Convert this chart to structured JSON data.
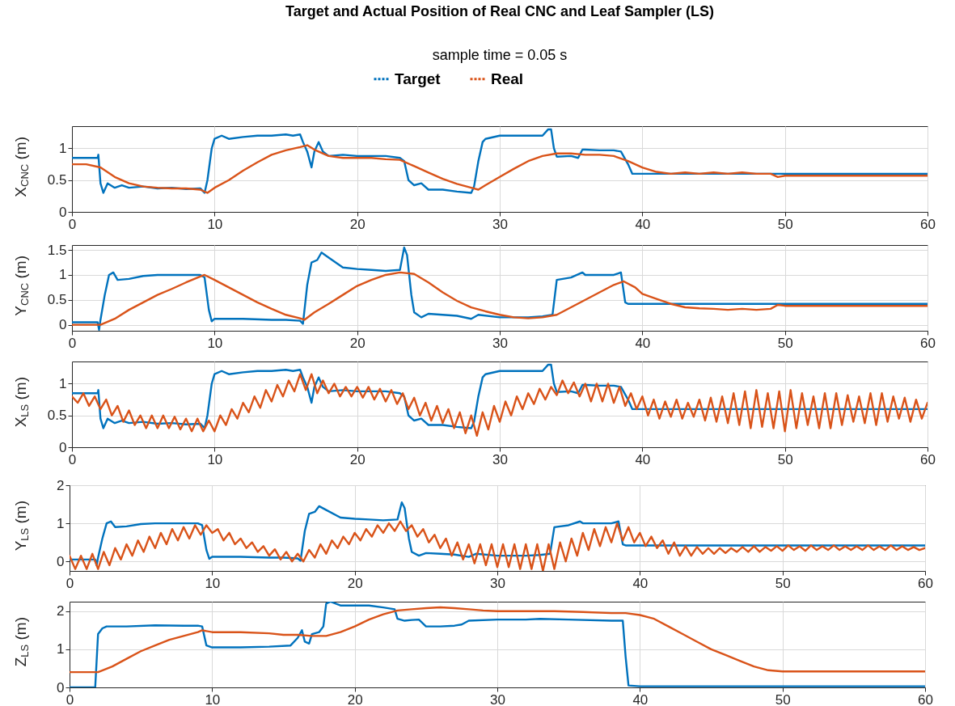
{
  "chart_data": [
    {
      "type": "line",
      "title": "Target and Actual Position of Real CNC and Leaf Sampler (LS)",
      "subtitle": "sample time = 0.05 s",
      "ylabel": "X$_{CNC}$ (m)",
      "legend": "top",
      "grid": true,
      "xlim": [
        0,
        60
      ],
      "xticks": [
        0,
        10,
        20,
        30,
        40,
        50,
        60
      ],
      "ylim": [
        0,
        1.35
      ],
      "yticks": [
        0,
        0.5,
        1
      ],
      "series": [
        {
          "name": "Target",
          "color": "#0072bd",
          "x": [
            0,
            1.8,
            1.85,
            2,
            2.2,
            2.5,
            3,
            3.5,
            4,
            5,
            6,
            7,
            8,
            9,
            9.3,
            9.5,
            9.8,
            10,
            10.5,
            11,
            12,
            13,
            14,
            15,
            15.5,
            16,
            16.2,
            16.5,
            16.8,
            17,
            17.3,
            17.6,
            18,
            19,
            20,
            21,
            22,
            23,
            23.3,
            23.6,
            24,
            24.5,
            25,
            26,
            27,
            28,
            28.2,
            28.5,
            28.8,
            29,
            30,
            31,
            32,
            33,
            33.4,
            33.6,
            33.8,
            34,
            35,
            35.5,
            35.8,
            36,
            37,
            38,
            38.5,
            39,
            39.3,
            45,
            50,
            60
          ],
          "values": [
            0.85,
            0.85,
            0.9,
            0.45,
            0.3,
            0.45,
            0.38,
            0.42,
            0.38,
            0.4,
            0.37,
            0.38,
            0.36,
            0.37,
            0.3,
            0.5,
            1.0,
            1.15,
            1.2,
            1.15,
            1.18,
            1.2,
            1.2,
            1.22,
            1.2,
            1.22,
            1.1,
            0.95,
            0.7,
            0.95,
            1.1,
            0.95,
            0.88,
            0.9,
            0.88,
            0.88,
            0.88,
            0.85,
            0.8,
            0.5,
            0.42,
            0.45,
            0.35,
            0.35,
            0.32,
            0.3,
            0.4,
            0.8,
            1.1,
            1.15,
            1.2,
            1.2,
            1.2,
            1.2,
            1.3,
            1.3,
            1.0,
            0.87,
            0.88,
            0.85,
            0.98,
            0.98,
            0.97,
            0.97,
            0.95,
            0.75,
            0.6,
            0.6,
            0.6,
            0.6
          ]
        },
        {
          "name": "Real",
          "color": "#d95319",
          "x": [
            0,
            1,
            2,
            3,
            4,
            5,
            6,
            7,
            8,
            9,
            9.5,
            10,
            11,
            12,
            13,
            14,
            15,
            16,
            16.5,
            17,
            18,
            19,
            20,
            21,
            22,
            23,
            24,
            25,
            26,
            27,
            28,
            28.5,
            29,
            30,
            31,
            32,
            33,
            34,
            35,
            36,
            37,
            38,
            39,
            40,
            41,
            42,
            43,
            44,
            45,
            46,
            47,
            48,
            49,
            49.5,
            50,
            60
          ],
          "values": [
            0.75,
            0.75,
            0.7,
            0.55,
            0.45,
            0.4,
            0.38,
            0.37,
            0.37,
            0.35,
            0.3,
            0.38,
            0.5,
            0.65,
            0.78,
            0.9,
            0.97,
            1.02,
            1.05,
            0.98,
            0.88,
            0.85,
            0.85,
            0.85,
            0.83,
            0.82,
            0.72,
            0.62,
            0.52,
            0.44,
            0.38,
            0.35,
            0.42,
            0.55,
            0.68,
            0.8,
            0.88,
            0.92,
            0.92,
            0.9,
            0.9,
            0.88,
            0.8,
            0.7,
            0.63,
            0.6,
            0.62,
            0.6,
            0.62,
            0.6,
            0.62,
            0.6,
            0.6,
            0.55,
            0.57,
            0.57
          ]
        }
      ]
    },
    {
      "type": "line",
      "ylabel": "Y$_{CNC}$ (m)",
      "grid": true,
      "xlim": [
        0,
        60
      ],
      "xticks": [
        0,
        10,
        20,
        30,
        40,
        50,
        60
      ],
      "ylim": [
        -0.12,
        1.6
      ],
      "yticks": [
        0,
        0.5,
        1,
        1.5
      ],
      "series": [
        {
          "color": "#0072bd",
          "x": [
            0,
            1.5,
            1.8,
            1.9,
            2,
            2.3,
            2.6,
            2.9,
            3.2,
            4,
            5,
            6,
            7,
            8,
            9,
            9.3,
            9.6,
            9.8,
            10,
            11,
            12,
            14,
            15,
            16,
            16.2,
            16.5,
            16.8,
            17.2,
            17.5,
            18,
            19,
            20,
            21,
            22,
            23,
            23.3,
            23.5,
            23.8,
            24,
            24.5,
            25,
            26,
            27,
            28,
            28.5,
            30,
            32,
            33,
            33.7,
            34,
            35,
            35.8,
            36,
            37,
            38,
            38.5,
            38.8,
            39,
            60
          ],
          "values": [
            0.05,
            0.05,
            0.05,
            -0.1,
            0.1,
            0.6,
            1.0,
            1.05,
            0.9,
            0.92,
            0.98,
            1.0,
            1.0,
            1.0,
            1.0,
            0.95,
            0.3,
            0.07,
            0.12,
            0.12,
            0.12,
            0.1,
            0.1,
            0.08,
            0.02,
            0.8,
            1.25,
            1.3,
            1.45,
            1.35,
            1.15,
            1.12,
            1.1,
            1.08,
            1.1,
            1.55,
            1.4,
            0.6,
            0.25,
            0.15,
            0.22,
            0.2,
            0.18,
            0.12,
            0.2,
            0.15,
            0.15,
            0.17,
            0.2,
            0.9,
            0.95,
            1.05,
            1.0,
            1.0,
            1.0,
            1.05,
            0.45,
            0.42,
            0.42
          ]
        },
        {
          "color": "#d95319",
          "x": [
            0,
            2,
            3,
            4,
            5,
            6,
            7,
            8,
            9,
            9.3,
            10,
            11,
            12,
            13,
            14,
            15,
            16,
            16.3,
            17,
            18,
            19,
            20,
            21,
            22,
            23,
            24,
            25,
            26,
            27,
            28,
            29,
            30,
            31,
            32,
            33,
            34,
            35,
            36,
            37,
            38,
            38.7,
            39.5,
            40,
            41,
            42,
            43,
            44,
            45,
            46,
            47,
            48,
            49,
            49.5,
            50,
            60
          ],
          "values": [
            0,
            0,
            0.12,
            0.3,
            0.45,
            0.6,
            0.72,
            0.85,
            0.97,
            1.0,
            0.9,
            0.75,
            0.6,
            0.45,
            0.32,
            0.2,
            0.13,
            0.1,
            0.25,
            0.42,
            0.6,
            0.78,
            0.9,
            1.0,
            1.05,
            1.02,
            0.85,
            0.65,
            0.48,
            0.35,
            0.27,
            0.2,
            0.15,
            0.13,
            0.15,
            0.2,
            0.35,
            0.5,
            0.65,
            0.8,
            0.87,
            0.75,
            0.62,
            0.52,
            0.42,
            0.35,
            0.33,
            0.32,
            0.3,
            0.32,
            0.3,
            0.32,
            0.4,
            0.38,
            0.38
          ]
        }
      ]
    },
    {
      "type": "line",
      "ylabel": "X$_{LS}$ (m)",
      "grid": true,
      "xlim": [
        0,
        60
      ],
      "xticks": [
        0,
        10,
        20,
        30,
        40,
        50,
        60
      ],
      "ylim": [
        0,
        1.35
      ],
      "yticks": [
        0,
        0.5,
        1
      ],
      "series": [
        {
          "color": "#0072bd",
          "x": [
            0,
            1.8,
            1.85,
            2,
            2.2,
            2.5,
            3,
            3.5,
            4,
            5,
            6,
            7,
            8,
            9,
            9.3,
            9.5,
            9.8,
            10,
            10.5,
            11,
            12,
            13,
            14,
            15,
            15.5,
            16,
            16.2,
            16.5,
            16.8,
            17,
            17.3,
            17.6,
            18,
            19,
            20,
            21,
            22,
            23,
            23.3,
            23.6,
            24,
            24.5,
            25,
            26,
            27,
            28,
            28.2,
            28.5,
            28.8,
            29,
            30,
            31,
            32,
            33,
            33.4,
            33.6,
            33.8,
            34,
            35,
            35.5,
            35.8,
            36,
            37,
            38,
            38.5,
            39,
            39.3,
            45,
            50,
            60
          ],
          "values": [
            0.85,
            0.85,
            0.9,
            0.45,
            0.3,
            0.45,
            0.38,
            0.42,
            0.38,
            0.4,
            0.37,
            0.38,
            0.36,
            0.37,
            0.3,
            0.5,
            1.0,
            1.15,
            1.2,
            1.15,
            1.18,
            1.2,
            1.2,
            1.22,
            1.2,
            1.22,
            1.1,
            0.95,
            0.7,
            0.95,
            1.1,
            0.95,
            0.88,
            0.9,
            0.88,
            0.88,
            0.88,
            0.85,
            0.8,
            0.5,
            0.42,
            0.45,
            0.35,
            0.35,
            0.32,
            0.3,
            0.4,
            0.8,
            1.1,
            1.15,
            1.2,
            1.2,
            1.2,
            1.2,
            1.3,
            1.3,
            1.0,
            0.87,
            0.88,
            0.85,
            0.98,
            0.98,
            0.97,
            0.97,
            0.95,
            0.75,
            0.6,
            0.6,
            0.6,
            0.6
          ]
        },
        {
          "color": "#d95319",
          "x": [
            0,
            0.4,
            0.8,
            1.2,
            1.6,
            2,
            2.4,
            2.8,
            3.2,
            3.6,
            4,
            4.4,
            4.8,
            5.2,
            5.6,
            6,
            6.4,
            6.8,
            7.2,
            7.6,
            8,
            8.4,
            8.8,
            9.2,
            9.6,
            10,
            10.4,
            10.8,
            11.2,
            11.6,
            12,
            12.4,
            12.8,
            13.2,
            13.6,
            14,
            14.4,
            14.8,
            15.2,
            15.6,
            16,
            16.4,
            16.8,
            17.2,
            17.6,
            18,
            18.4,
            18.8,
            19.2,
            19.6,
            20,
            20.4,
            20.8,
            21.2,
            21.6,
            22,
            22.4,
            22.8,
            23.2,
            23.6,
            24,
            24.4,
            24.8,
            25.2,
            25.6,
            26,
            26.4,
            26.8,
            27.2,
            27.6,
            28,
            28.4,
            28.8,
            29.2,
            29.6,
            30,
            30.4,
            30.8,
            31.2,
            31.6,
            32,
            32.4,
            32.8,
            33.2,
            33.6,
            34,
            34.4,
            34.8,
            35.2,
            35.6,
            36,
            36.4,
            36.8,
            37.2,
            37.6,
            38,
            38.4,
            38.8,
            39.2,
            39.6,
            40,
            40.4,
            40.8,
            41.2,
            41.6,
            42,
            42.4,
            42.8,
            43.2,
            43.6,
            44,
            44.4,
            44.8,
            45.2,
            45.6,
            46,
            46.4,
            46.8,
            47.2,
            47.6,
            48,
            48.4,
            48.8,
            49.2,
            49.6,
            50,
            50.4,
            50.8,
            51.2,
            51.6,
            52,
            52.4,
            52.8,
            53.2,
            53.6,
            54,
            54.4,
            54.8,
            55.2,
            55.6,
            56,
            56.4,
            56.8,
            57.2,
            57.6,
            58,
            58.4,
            58.8,
            59.2,
            59.6,
            60
          ],
          "values": [
            0.8,
            0.7,
            0.85,
            0.65,
            0.8,
            0.6,
            0.75,
            0.5,
            0.65,
            0.4,
            0.58,
            0.35,
            0.5,
            0.3,
            0.5,
            0.3,
            0.5,
            0.3,
            0.48,
            0.28,
            0.45,
            0.25,
            0.45,
            0.25,
            0.42,
            0.25,
            0.5,
            0.35,
            0.6,
            0.45,
            0.7,
            0.55,
            0.8,
            0.62,
            0.9,
            0.72,
            0.98,
            0.8,
            1.05,
            0.88,
            1.15,
            0.9,
            1.15,
            0.85,
            1.05,
            0.85,
            1.0,
            0.8,
            0.95,
            0.8,
            0.95,
            0.78,
            0.95,
            0.75,
            0.92,
            0.72,
            0.9,
            0.68,
            0.85,
            0.6,
            0.78,
            0.5,
            0.7,
            0.42,
            0.65,
            0.38,
            0.6,
            0.3,
            0.55,
            0.22,
            0.5,
            0.18,
            0.55,
            0.28,
            0.65,
            0.4,
            0.72,
            0.5,
            0.8,
            0.6,
            0.85,
            0.68,
            0.92,
            0.75,
            0.95,
            0.82,
            1.05,
            0.85,
            1.02,
            0.8,
            1.0,
            0.72,
            1.0,
            0.72,
            1.0,
            0.7,
            0.95,
            0.65,
            0.85,
            0.6,
            0.8,
            0.5,
            0.75,
            0.45,
            0.72,
            0.48,
            0.75,
            0.45,
            0.7,
            0.48,
            0.75,
            0.42,
            0.78,
            0.4,
            0.8,
            0.38,
            0.85,
            0.35,
            0.88,
            0.3,
            0.9,
            0.32,
            0.85,
            0.3,
            0.88,
            0.25,
            0.9,
            0.3,
            0.85,
            0.35,
            0.8,
            0.3,
            0.85,
            0.3,
            0.85,
            0.35,
            0.82,
            0.4,
            0.8,
            0.38,
            0.85,
            0.35,
            0.85,
            0.4,
            0.8,
            0.45,
            0.78,
            0.4,
            0.75,
            0.45,
            0.7
          ]
        }
      ]
    },
    {
      "type": "line",
      "ylabel": "Y$_{LS}$ (m)",
      "grid": true,
      "xlim": [
        0,
        60
      ],
      "xticks": [
        0,
        10,
        20,
        30,
        40,
        50,
        60
      ],
      "ylim": [
        -0.25,
        2
      ],
      "yticks": [
        0,
        1,
        2
      ],
      "series": [
        {
          "color": "#0072bd",
          "x": [
            0,
            1.5,
            1.8,
            1.9,
            2,
            2.3,
            2.6,
            2.9,
            3.2,
            4,
            5,
            6,
            7,
            8,
            9,
            9.3,
            9.6,
            9.8,
            10,
            11,
            12,
            14,
            15,
            16,
            16.2,
            16.5,
            16.8,
            17.2,
            17.5,
            18,
            19,
            20,
            21,
            22,
            23,
            23.3,
            23.5,
            23.8,
            24,
            24.5,
            25,
            26,
            27,
            28,
            28.5,
            30,
            32,
            33,
            33.7,
            34,
            35,
            35.8,
            36,
            37,
            38,
            38.5,
            38.8,
            39,
            60
          ],
          "values": [
            0.05,
            0.05,
            0.05,
            -0.1,
            0.1,
            0.6,
            1.0,
            1.05,
            0.9,
            0.92,
            0.98,
            1.0,
            1.0,
            1.0,
            1.0,
            0.95,
            0.3,
            0.07,
            0.12,
            0.12,
            0.12,
            0.1,
            0.1,
            0.08,
            0.02,
            0.8,
            1.25,
            1.3,
            1.45,
            1.35,
            1.15,
            1.12,
            1.1,
            1.08,
            1.1,
            1.55,
            1.4,
            0.6,
            0.25,
            0.15,
            0.22,
            0.2,
            0.18,
            0.12,
            0.2,
            0.15,
            0.15,
            0.17,
            0.2,
            0.9,
            0.95,
            1.05,
            1.0,
            1.0,
            1.0,
            1.05,
            0.45,
            0.42,
            0.42
          ]
        },
        {
          "color": "#d95319",
          "x": [
            0,
            0.4,
            0.8,
            1.2,
            1.6,
            2,
            2.4,
            2.8,
            3.2,
            3.6,
            4,
            4.4,
            4.8,
            5.2,
            5.6,
            6,
            6.4,
            6.8,
            7.2,
            7.6,
            8,
            8.4,
            8.8,
            9.2,
            9.6,
            10,
            10.4,
            10.8,
            11.2,
            11.6,
            12,
            12.4,
            12.8,
            13.2,
            13.6,
            14,
            14.4,
            14.8,
            15.2,
            15.6,
            16,
            16.4,
            16.8,
            17.2,
            17.6,
            18,
            18.4,
            18.8,
            19.2,
            19.6,
            20,
            20.4,
            20.8,
            21.2,
            21.6,
            22,
            22.4,
            22.8,
            23.2,
            23.6,
            24,
            24.4,
            24.8,
            25.2,
            25.6,
            26,
            26.4,
            26.8,
            27.2,
            27.6,
            28,
            28.4,
            28.8,
            29.2,
            29.6,
            30,
            30.4,
            30.8,
            31.2,
            31.6,
            32,
            32.4,
            32.8,
            33.2,
            33.6,
            34,
            34.4,
            34.8,
            35.2,
            35.6,
            36,
            36.4,
            36.8,
            37.2,
            37.6,
            38,
            38.4,
            38.8,
            39.2,
            39.6,
            40,
            40.4,
            40.8,
            41.2,
            41.6,
            42,
            42.4,
            42.8,
            43.2,
            43.6,
            44,
            44.4,
            44.8,
            45.2,
            45.6,
            46,
            46.4,
            46.8,
            47.2,
            47.6,
            48,
            48.4,
            48.8,
            49.2,
            49.6,
            50,
            50.4,
            50.8,
            51.2,
            51.6,
            52,
            52.4,
            52.8,
            53.2,
            53.6,
            54,
            54.4,
            54.8,
            55.2,
            55.6,
            56,
            56.4,
            56.8,
            57.2,
            57.6,
            58,
            58.4,
            58.8,
            59.2,
            59.6,
            60
          ],
          "values": [
            0.15,
            -0.2,
            0.15,
            -0.2,
            0.2,
            -0.2,
            0.25,
            -0.1,
            0.35,
            0.05,
            0.45,
            0.15,
            0.55,
            0.25,
            0.65,
            0.35,
            0.75,
            0.45,
            0.85,
            0.55,
            0.9,
            0.6,
            0.95,
            0.7,
            0.95,
            0.75,
            0.85,
            0.55,
            0.75,
            0.45,
            0.6,
            0.35,
            0.5,
            0.25,
            0.4,
            0.15,
            0.32,
            0.05,
            0.25,
            0.0,
            0.2,
            0.0,
            0.3,
            0.1,
            0.45,
            0.2,
            0.55,
            0.35,
            0.65,
            0.45,
            0.75,
            0.55,
            0.85,
            0.65,
            0.95,
            0.75,
            1.0,
            0.8,
            1.05,
            0.8,
            0.95,
            0.65,
            0.85,
            0.5,
            0.7,
            0.35,
            0.6,
            0.15,
            0.5,
            0.05,
            0.45,
            -0.05,
            0.45,
            -0.1,
            0.45,
            -0.15,
            0.45,
            -0.15,
            0.45,
            -0.2,
            0.45,
            -0.2,
            0.45,
            -0.25,
            0.45,
            -0.2,
            0.5,
            0.0,
            0.6,
            0.15,
            0.75,
            0.3,
            0.85,
            0.4,
            0.9,
            0.5,
            1.0,
            0.55,
            0.9,
            0.5,
            0.75,
            0.4,
            0.65,
            0.35,
            0.55,
            0.2,
            0.5,
            0.15,
            0.4,
            0.15,
            0.38,
            0.2,
            0.35,
            0.2,
            0.35,
            0.22,
            0.35,
            0.25,
            0.38,
            0.25,
            0.4,
            0.25,
            0.38,
            0.28,
            0.4,
            0.28,
            0.42,
            0.3,
            0.4,
            0.28,
            0.42,
            0.3,
            0.4,
            0.3,
            0.42,
            0.3,
            0.4,
            0.3,
            0.4,
            0.3,
            0.42,
            0.3,
            0.4,
            0.3,
            0.42,
            0.3,
            0.4,
            0.3,
            0.38,
            0.3,
            0.35
          ]
        }
      ]
    },
    {
      "type": "line",
      "ylabel": "Z$_{LS}$ (m)",
      "grid": true,
      "xlim": [
        0,
        60
      ],
      "xticks": [
        0,
        10,
        20,
        30,
        40,
        50,
        60
      ],
      "ylim": [
        0,
        2.25
      ],
      "yticks": [
        0,
        1,
        2
      ],
      "series": [
        {
          "color": "#0072bd",
          "x": [
            0,
            1.8,
            2,
            2.3,
            2.6,
            4,
            6,
            8,
            9,
            9.3,
            9.6,
            10,
            12,
            14,
            15.5,
            16,
            16.3,
            16.5,
            16.8,
            17,
            17.5,
            17.8,
            18,
            18.3,
            19,
            20,
            21,
            22,
            22.8,
            23,
            23.5,
            24,
            24.5,
            25,
            26,
            27,
            27.5,
            28,
            30,
            32,
            33,
            35,
            38,
            38.8,
            39,
            39.2,
            40,
            60
          ],
          "values": [
            0,
            0,
            1.4,
            1.55,
            1.6,
            1.6,
            1.63,
            1.62,
            1.62,
            1.6,
            1.1,
            1.05,
            1.05,
            1.07,
            1.1,
            1.3,
            1.5,
            1.2,
            1.15,
            1.4,
            1.45,
            1.6,
            2.2,
            2.25,
            2.15,
            2.15,
            2.15,
            2.1,
            2.05,
            1.8,
            1.75,
            1.77,
            1.78,
            1.6,
            1.6,
            1.62,
            1.65,
            1.75,
            1.78,
            1.78,
            1.8,
            1.78,
            1.75,
            1.75,
            0.8,
            0.05,
            0.03,
            0.03
          ]
        },
        {
          "color": "#d95319",
          "x": [
            0,
            2,
            3,
            4,
            5,
            6,
            7,
            8,
            9,
            9.3,
            10,
            12,
            14,
            15,
            16,
            17,
            18,
            19,
            20,
            21,
            22,
            23,
            24,
            25,
            26,
            27,
            28,
            29,
            30,
            32,
            34,
            36,
            38,
            39,
            40,
            41,
            42,
            43,
            44,
            45,
            46,
            47,
            48,
            49,
            50,
            60
          ],
          "values": [
            0.4,
            0.4,
            0.55,
            0.75,
            0.95,
            1.1,
            1.25,
            1.35,
            1.45,
            1.5,
            1.45,
            1.45,
            1.42,
            1.38,
            1.38,
            1.35,
            1.35,
            1.45,
            1.6,
            1.78,
            1.92,
            2.02,
            2.05,
            2.08,
            2.1,
            2.08,
            2.05,
            2.02,
            2.0,
            2.0,
            2.0,
            1.98,
            1.95,
            1.95,
            1.9,
            1.8,
            1.6,
            1.4,
            1.2,
            1.0,
            0.85,
            0.7,
            0.55,
            0.45,
            0.42,
            0.42
          ]
        }
      ]
    }
  ]
}
